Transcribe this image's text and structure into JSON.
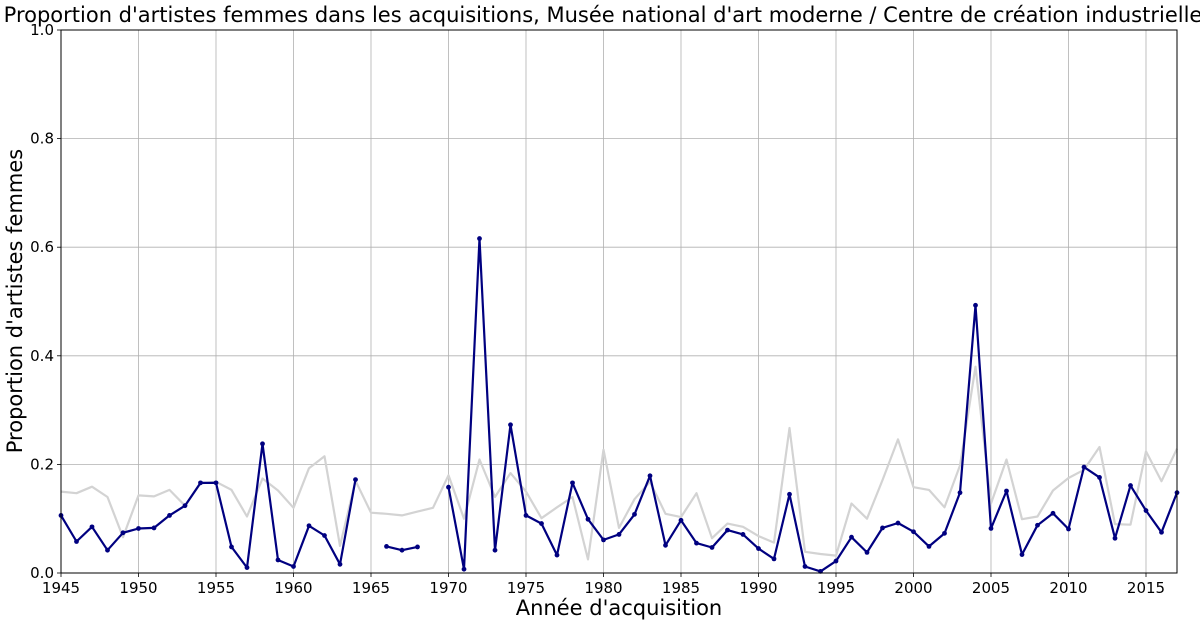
{
  "chart_data": {
    "type": "line",
    "title": "Proportion d'artistes femmes dans les acquisitions, Musée national d'art moderne / Centre de création industrielle",
    "xlabel": "Année d'acquisition",
    "ylabel": "Proportion d'artistes femmes",
    "xlim": [
      1945,
      2017
    ],
    "ylim": [
      0,
      1
    ],
    "x_ticks": [
      1945,
      1950,
      1955,
      1960,
      1965,
      1970,
      1975,
      1980,
      1985,
      1990,
      1995,
      2000,
      2005,
      2010,
      2015
    ],
    "y_ticks": [
      0.0,
      0.2,
      0.4,
      0.6,
      0.8,
      1.0
    ],
    "y_tick_labels": [
      "0.0",
      "0.2",
      "0.4",
      "0.6",
      "0.8",
      "1.0"
    ],
    "grid": true,
    "series": [
      {
        "color": "#d3d3d3",
        "markers": false,
        "points": [
          [
            1945,
            0.15
          ],
          [
            1946,
            0.147
          ],
          [
            1947,
            0.159
          ],
          [
            1948,
            0.14
          ],
          [
            1949,
            0.066
          ],
          [
            1950,
            0.143
          ],
          [
            1951,
            0.141
          ],
          [
            1952,
            0.153
          ],
          [
            1953,
            0.124
          ],
          [
            1954,
            0.165
          ],
          [
            1955,
            0.168
          ],
          [
            1956,
            0.153
          ],
          [
            1957,
            0.104
          ],
          [
            1958,
            0.174
          ],
          [
            1959,
            0.152
          ],
          [
            1960,
            0.12
          ],
          [
            1961,
            0.193
          ],
          [
            1962,
            0.215
          ],
          [
            1963,
            0.05
          ],
          [
            1964,
            0.17
          ],
          [
            1965,
            0.111
          ],
          [
            1966,
            0.109
          ],
          [
            1967,
            0.106
          ],
          [
            1968,
            0.113
          ],
          [
            1969,
            0.12
          ],
          [
            1970,
            0.18
          ],
          [
            1971,
            0.1
          ],
          [
            1972,
            0.209
          ],
          [
            1973,
            0.14
          ],
          [
            1974,
            0.184
          ],
          [
            1975,
            0.15
          ],
          [
            1976,
            0.101
          ],
          [
            1977,
            0.121
          ],
          [
            1978,
            0.14
          ],
          [
            1979,
            0.025
          ],
          [
            1980,
            0.227
          ],
          [
            1981,
            0.083
          ],
          [
            1982,
            0.136
          ],
          [
            1983,
            0.168
          ],
          [
            1984,
            0.109
          ],
          [
            1985,
            0.103
          ],
          [
            1986,
            0.147
          ],
          [
            1987,
            0.064
          ],
          [
            1988,
            0.091
          ],
          [
            1989,
            0.085
          ],
          [
            1990,
            0.068
          ],
          [
            1991,
            0.056
          ],
          [
            1992,
            0.267
          ],
          [
            1993,
            0.039
          ],
          [
            1994,
            0.035
          ],
          [
            1995,
            0.032
          ],
          [
            1996,
            0.128
          ],
          [
            1997,
            0.1
          ],
          [
            1998,
            0.171
          ],
          [
            1999,
            0.246
          ],
          [
            2000,
            0.158
          ],
          [
            2001,
            0.153
          ],
          [
            2002,
            0.121
          ],
          [
            2003,
            0.198
          ],
          [
            2004,
            0.38
          ],
          [
            2005,
            0.128
          ],
          [
            2006,
            0.209
          ],
          [
            2007,
            0.099
          ],
          [
            2008,
            0.104
          ],
          [
            2009,
            0.152
          ],
          [
            2010,
            0.175
          ],
          [
            2011,
            0.19
          ],
          [
            2012,
            0.232
          ],
          [
            2013,
            0.09
          ],
          [
            2014,
            0.089
          ],
          [
            2015,
            0.224
          ],
          [
            2016,
            0.169
          ],
          [
            2017,
            0.229
          ]
        ]
      },
      {
        "color": "#000080",
        "markers": true,
        "points": [
          [
            1945,
            0.106
          ],
          [
            1946,
            0.058
          ],
          [
            1947,
            0.085
          ],
          [
            1948,
            0.042
          ],
          [
            1949,
            0.074
          ],
          [
            1950,
            0.082
          ],
          [
            1951,
            0.083
          ],
          [
            1952,
            0.106
          ],
          [
            1953,
            0.124
          ],
          [
            1954,
            0.166
          ],
          [
            1955,
            0.166
          ],
          [
            1956,
            0.048
          ],
          [
            1957,
            0.01
          ],
          [
            1958,
            0.238
          ],
          [
            1959,
            0.024
          ],
          [
            1960,
            0.012
          ],
          [
            1961,
            0.087
          ],
          [
            1962,
            0.069
          ],
          [
            1963,
            0.016
          ],
          [
            1964,
            0.172
          ],
          [
            1965,
            null
          ],
          [
            1966,
            0.049
          ],
          [
            1967,
            0.042
          ],
          [
            1968,
            0.048
          ],
          [
            1969,
            null
          ],
          [
            1970,
            0.158
          ],
          [
            1971,
            0.007
          ],
          [
            1972,
            0.616
          ],
          [
            1973,
            0.042
          ],
          [
            1974,
            0.273
          ],
          [
            1975,
            0.106
          ],
          [
            1976,
            0.091
          ],
          [
            1977,
            0.033
          ],
          [
            1978,
            0.166
          ],
          [
            1979,
            0.099
          ],
          [
            1980,
            0.061
          ],
          [
            1981,
            0.071
          ],
          [
            1982,
            0.108
          ],
          [
            1983,
            0.179
          ],
          [
            1984,
            0.051
          ],
          [
            1985,
            0.097
          ],
          [
            1986,
            0.055
          ],
          [
            1987,
            0.047
          ],
          [
            1988,
            0.079
          ],
          [
            1989,
            0.071
          ],
          [
            1990,
            0.045
          ],
          [
            1991,
            0.026
          ],
          [
            1992,
            0.145
          ],
          [
            1993,
            0.012
          ],
          [
            1994,
            0.003
          ],
          [
            1995,
            0.022
          ],
          [
            1996,
            0.066
          ],
          [
            1997,
            0.038
          ],
          [
            1998,
            0.083
          ],
          [
            1999,
            0.092
          ],
          [
            2000,
            0.076
          ],
          [
            2001,
            0.049
          ],
          [
            2002,
            0.073
          ],
          [
            2003,
            0.148
          ],
          [
            2004,
            0.493
          ],
          [
            2005,
            0.082
          ],
          [
            2006,
            0.151
          ],
          [
            2007,
            0.034
          ],
          [
            2008,
            0.088
          ],
          [
            2009,
            0.11
          ],
          [
            2010,
            0.081
          ],
          [
            2011,
            0.195
          ],
          [
            2012,
            0.176
          ],
          [
            2013,
            0.064
          ],
          [
            2014,
            0.161
          ],
          [
            2015,
            0.115
          ],
          [
            2016,
            0.075
          ],
          [
            2017,
            0.148
          ]
        ]
      }
    ]
  }
}
